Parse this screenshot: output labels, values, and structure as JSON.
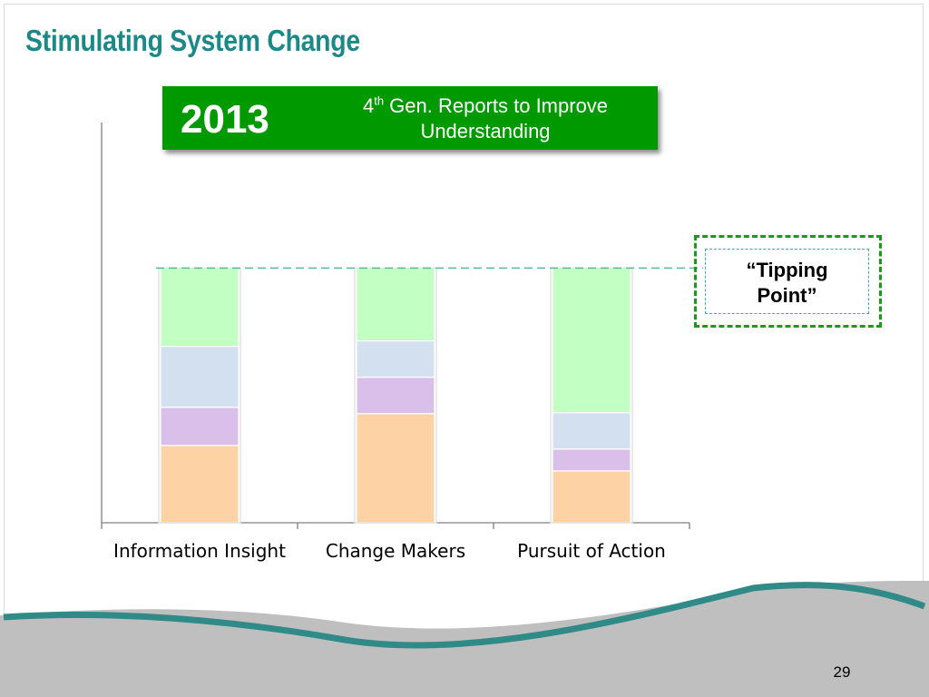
{
  "slide": {
    "title": "Stimulating System Change",
    "page_number": "29"
  },
  "banner": {
    "year": "2013",
    "ordinal": "4",
    "ordinal_suffix": "th",
    "caption_line1": " Gen. Reports to Improve",
    "caption_line2": "Understanding",
    "color": "#009a00"
  },
  "callout": {
    "line1": "“Tipping",
    "line2": "Point”"
  },
  "colors": {
    "title": "#1b8a87",
    "wave_teal": "#2f8a88",
    "wave_gray": "#bfbfbf"
  },
  "chart_data": {
    "type": "bar",
    "stacked": true,
    "categories": [
      "Information Insight",
      "Change Makers",
      "Pursuit of Action"
    ],
    "series": [
      {
        "values": [
          85,
          120,
          57
        ],
        "color": "#fdd3a6"
      },
      {
        "values": [
          42,
          40,
          24
        ],
        "color": "#d9bfe9"
      },
      {
        "values": [
          67,
          40,
          40
        ],
        "color": "#d3e0f0"
      },
      {
        "values": [
          86,
          80,
          159
        ],
        "color": "#c1ffc3"
      }
    ],
    "ylim": [
      0,
      440
    ],
    "threshold": 280,
    "threshold_color": "#4fbf97",
    "grid": false,
    "xlabel": "",
    "ylabel": ""
  }
}
